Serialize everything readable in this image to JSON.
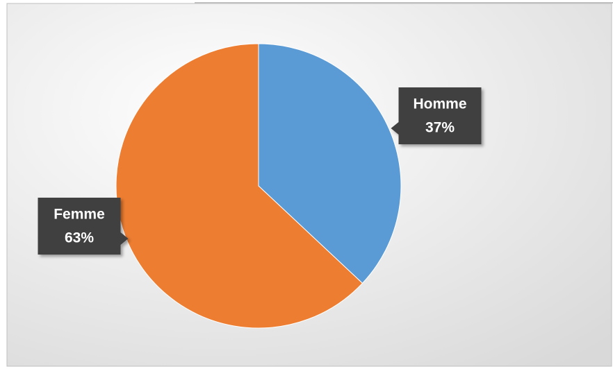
{
  "chart_data": {
    "type": "pie",
    "categories": [
      "Homme",
      "Femme"
    ],
    "values": [
      37,
      63
    ],
    "value_labels": [
      "37%",
      "63%"
    ],
    "colors": [
      "#5b9bd5",
      "#ed7d31"
    ]
  }
}
